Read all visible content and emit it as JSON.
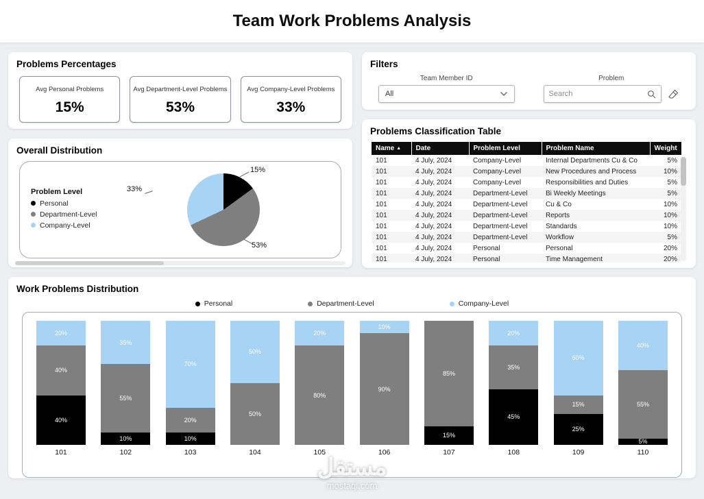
{
  "header": {
    "title": "Team Work Problems Analysis"
  },
  "kpi_section": {
    "title": "Problems Percentages",
    "cards": [
      {
        "label": "Avg Personal Problems",
        "value": "15%"
      },
      {
        "label": "Avg Department-Level Problems",
        "value": "53%"
      },
      {
        "label": "Avg Company-Level Problems",
        "value": "33%"
      }
    ]
  },
  "filters": {
    "title": "Filters",
    "team_member": {
      "label": "Team Member ID",
      "value": "All"
    },
    "problem": {
      "label": "Problem",
      "placeholder": "Search"
    }
  },
  "overall_distribution": {
    "title": "Overall Distribution",
    "chart_data": {
      "type": "pie",
      "legend_title": "Problem Level",
      "labels": [
        "Personal",
        "Department-Level",
        "Company-Level"
      ],
      "values": [
        15,
        53,
        33
      ],
      "colors": [
        "#000000",
        "#7f7f7f",
        "#a7d3f4"
      ],
      "legend_position": "left"
    }
  },
  "classification_table": {
    "title": "Problems Classification Table",
    "columns": [
      "Name",
      "Date",
      "Problem Level",
      "Problem Name",
      "Weight"
    ],
    "sort": {
      "column": "Name",
      "direction": "ascending",
      "icon": "▲"
    },
    "rows": [
      [
        "101",
        "4 July, 2024",
        "Company-Level",
        "Internal Departments Cu & Co",
        "5%"
      ],
      [
        "101",
        "4 July, 2024",
        "Company-Level",
        "New Procedures and Process",
        "10%"
      ],
      [
        "101",
        "4 July, 2024",
        "Company-Level",
        "Responsibilities and Duties",
        "5%"
      ],
      [
        "101",
        "4 July, 2024",
        "Department-Level",
        "Bi Weekly Meetings",
        "5%"
      ],
      [
        "101",
        "4 July, 2024",
        "Department-Level",
        "Cu & Co",
        "10%"
      ],
      [
        "101",
        "4 July, 2024",
        "Department-Level",
        "Reports",
        "10%"
      ],
      [
        "101",
        "4 July, 2024",
        "Department-Level",
        "Standards",
        "10%"
      ],
      [
        "101",
        "4 July, 2024",
        "Department-Level",
        "Workflow",
        "5%"
      ],
      [
        "101",
        "4 July, 2024",
        "Personal",
        "Personal",
        "20%"
      ],
      [
        "101",
        "4 July, 2024",
        "Personal",
        "Time Management",
        "20%"
      ]
    ]
  },
  "work_distribution": {
    "title": "Work Problems Distribution",
    "chart_data": {
      "type": "bar",
      "stacked": true,
      "unit": "%",
      "categories": [
        "101",
        "102",
        "103",
        "104",
        "105",
        "106",
        "107",
        "108",
        "109",
        "110"
      ],
      "series": [
        {
          "name": "Personal",
          "color": "#000000",
          "values": [
            40,
            10,
            10,
            0,
            0,
            0,
            15,
            45,
            25,
            5
          ]
        },
        {
          "name": "Department-Level",
          "color": "#7f7f7f",
          "values": [
            40,
            55,
            20,
            50,
            80,
            90,
            85,
            35,
            15,
            55
          ]
        },
        {
          "name": "Company-Level",
          "color": "#a7d3f4",
          "values": [
            20,
            35,
            70,
            50,
            20,
            10,
            0,
            20,
            60,
            40
          ]
        }
      ],
      "ylim": [
        0,
        100
      ],
      "legend_position": "top"
    }
  },
  "icons": {
    "chevron_down": "svg-chevron",
    "search": "svg-magnifier",
    "eraser": "svg-eraser",
    "sort_ascending": "▲"
  },
  "watermark": {
    "line1": "مستقل",
    "line2": "mostaql.com"
  }
}
